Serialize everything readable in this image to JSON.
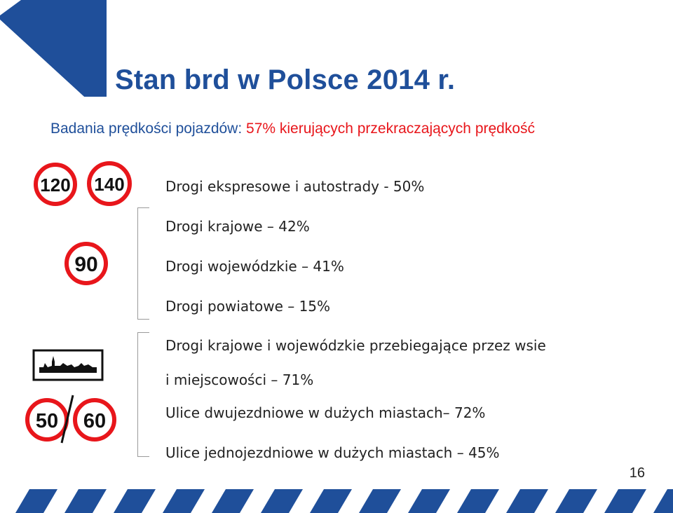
{
  "slide": {
    "title": "Stan brd w Polsce 2014 r.",
    "subtitle_prefix": "Badania prędkości pojazdów: ",
    "subtitle_highlight": "57% kierujących przekraczających prędkość",
    "page_number": "16"
  },
  "items": [
    "Drogi ekspresowe  i autostrady - 50%",
    "Drogi krajowe – 42%",
    "Drogi wojewódzkie – 41%",
    "Drogi powiatowe – 15%",
    "Drogi krajowe i wojewódzkie przebiegające przez wsie",
    "i miejscowości – 71%",
    "Ulice dwujezdniowe w dużych miastach– 72%",
    "Ulice jednojezdniowe w dużych miastach – 45%"
  ],
  "signs": {
    "s120": "120",
    "s140": "140",
    "s90": "90",
    "s50": "50",
    "s60": "60"
  },
  "colors": {
    "title_blue": "#1f4f9a",
    "accent_red": "#e8161b",
    "stripe_blue": "#1f4f9a"
  }
}
